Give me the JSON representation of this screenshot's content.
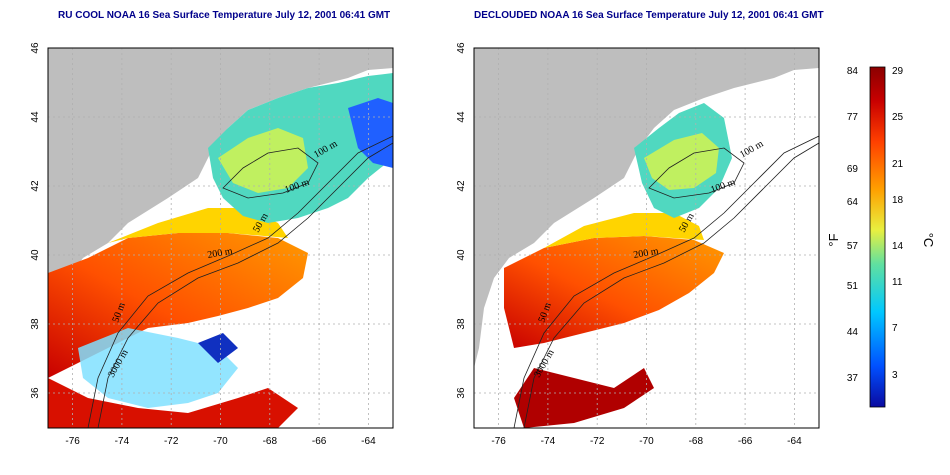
{
  "titles": {
    "left": "RU COOL NOAA 16 Sea Surface Temperature July 12, 2001 06:41 GMT",
    "right": "DECLOUDED NOAA 16 Sea Surface Temperature July 12, 2001 06:41 GMT"
  },
  "axes": {
    "lon_ticks": [
      "-76",
      "-74",
      "-72",
      "-70",
      "-68",
      "-66",
      "-64"
    ],
    "lat_ticks": [
      "46",
      "44",
      "42",
      "40",
      "38",
      "36"
    ],
    "lon_range": [
      -77,
      -63
    ],
    "lat_range": [
      35,
      46
    ]
  },
  "contour_labels": [
    "100 m",
    "100 m",
    "50 m",
    "200 m",
    "50 m",
    "3000 m"
  ],
  "colorbar": {
    "f_label": "°F",
    "c_label": "°C",
    "f_ticks": [
      "84",
      "77",
      "69",
      "64",
      "57",
      "51",
      "44",
      "37"
    ],
    "c_ticks": [
      "29",
      "25",
      "21",
      "18",
      "14",
      "11",
      "7",
      "3"
    ],
    "colors": [
      "#0a0aa0",
      "#0050ff",
      "#00c8ff",
      "#60e0a0",
      "#e8f040",
      "#ffa000",
      "#ff4000",
      "#c80000",
      "#8b0000"
    ]
  },
  "colors": {
    "land": "#bebebe",
    "cloud": "#ffffff",
    "grid": "#b0b0b0"
  }
}
